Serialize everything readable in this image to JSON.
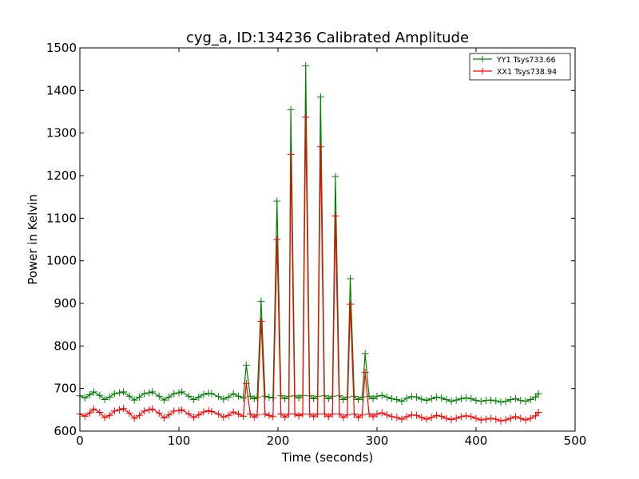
{
  "colors": {
    "yy1": "#008000",
    "xx1": "#ff0000",
    "axis": "#000000",
    "background": "#ffffff"
  },
  "chart_data": {
    "type": "line",
    "title": "cyg_a, ID:134236 Calibrated Amplitude",
    "xlabel": "Time (seconds)",
    "ylabel": "Power in Kelvin",
    "xlim": [
      0,
      500
    ],
    "ylim": [
      600,
      1500
    ],
    "x_ticks": [
      0,
      100,
      200,
      300,
      400,
      500
    ],
    "y_ticks": [
      600,
      700,
      800,
      900,
      1000,
      1100,
      1200,
      1300,
      1400,
      1500
    ],
    "grid": false,
    "legend_position": "top-right",
    "marker": "+",
    "series": [
      {
        "name": "YY1 Tsys733.66",
        "color": "#008000",
        "x": [
          0,
          5,
          10,
          14,
          20,
          25,
          30,
          35,
          40,
          44,
          50,
          55,
          60,
          65,
          70,
          73,
          80,
          85,
          90,
          95,
          100,
          103,
          110,
          115,
          120,
          125,
          130,
          133,
          140,
          145,
          150,
          155,
          160,
          165,
          168,
          172,
          176,
          179,
          183,
          187,
          191,
          195,
          199,
          203,
          207,
          211,
          213,
          217,
          221,
          225,
          228,
          232,
          236,
          240,
          243,
          247,
          251,
          255,
          258,
          262,
          266,
          270,
          273,
          277,
          281,
          285,
          288,
          292,
          296,
          300,
          305,
          310,
          315,
          320,
          325,
          330,
          335,
          340,
          345,
          350,
          355,
          360,
          365,
          370,
          375,
          380,
          385,
          390,
          395,
          400,
          405,
          410,
          415,
          420,
          425,
          430,
          435,
          440,
          445,
          450,
          455,
          460,
          463
        ],
        "values": [
          683,
          678,
          685,
          692,
          684,
          674,
          680,
          688,
          690,
          692,
          682,
          673,
          680,
          688,
          690,
          692,
          682,
          673,
          680,
          688,
          690,
          692,
          682,
          674,
          680,
          686,
          689,
          688,
          681,
          675,
          680,
          688,
          682,
          678,
          755,
          682,
          676,
          680,
          905,
          682,
          680,
          678,
          1140,
          683,
          676,
          682,
          1355,
          683,
          678,
          684,
          1458,
          683,
          676,
          682,
          1385,
          683,
          676,
          682,
          1198,
          683,
          674,
          680,
          958,
          682,
          674,
          680,
          782,
          682,
          676,
          682,
          684,
          680,
          676,
          674,
          670,
          677,
          681,
          680,
          675,
          672,
          676,
          680,
          678,
          674,
          670,
          673,
          676,
          678,
          676,
          672,
          670,
          672,
          673,
          671,
          668,
          670,
          674,
          676,
          672,
          670,
          674,
          680,
          688
        ]
      },
      {
        "name": "XX1 Tsys738.94",
        "color": "#ff0000",
        "x": [
          0,
          5,
          10,
          14,
          20,
          25,
          30,
          35,
          40,
          44,
          50,
          55,
          60,
          65,
          70,
          73,
          80,
          85,
          90,
          95,
          100,
          103,
          110,
          115,
          120,
          125,
          130,
          133,
          140,
          145,
          150,
          155,
          160,
          165,
          168,
          172,
          176,
          179,
          183,
          187,
          191,
          195,
          199,
          203,
          207,
          211,
          213,
          217,
          221,
          225,
          228,
          232,
          236,
          240,
          243,
          247,
          251,
          255,
          258,
          262,
          266,
          270,
          273,
          277,
          281,
          285,
          288,
          292,
          296,
          300,
          305,
          310,
          315,
          320,
          325,
          330,
          335,
          340,
          345,
          350,
          355,
          360,
          365,
          370,
          375,
          380,
          385,
          390,
          395,
          400,
          405,
          410,
          415,
          420,
          425,
          430,
          435,
          440,
          445,
          450,
          455,
          460,
          463
        ],
        "values": [
          640,
          635,
          643,
          652,
          644,
          632,
          637,
          647,
          650,
          653,
          642,
          630,
          637,
          647,
          650,
          652,
          642,
          631,
          638,
          647,
          648,
          650,
          640,
          632,
          638,
          645,
          648,
          646,
          640,
          633,
          637,
          645,
          640,
          635,
          712,
          640,
          633,
          638,
          858,
          640,
          637,
          634,
          1050,
          640,
          633,
          640,
          1250,
          640,
          636,
          640,
          1337,
          640,
          634,
          640,
          1268,
          640,
          634,
          640,
          1105,
          640,
          632,
          638,
          898,
          640,
          632,
          638,
          738,
          640,
          634,
          640,
          643,
          638,
          634,
          632,
          628,
          634,
          638,
          637,
          632,
          628,
          632,
          637,
          635,
          630,
          627,
          630,
          634,
          636,
          634,
          630,
          626,
          628,
          630,
          628,
          624,
          626,
          630,
          634,
          630,
          626,
          630,
          636,
          644
        ]
      }
    ]
  }
}
